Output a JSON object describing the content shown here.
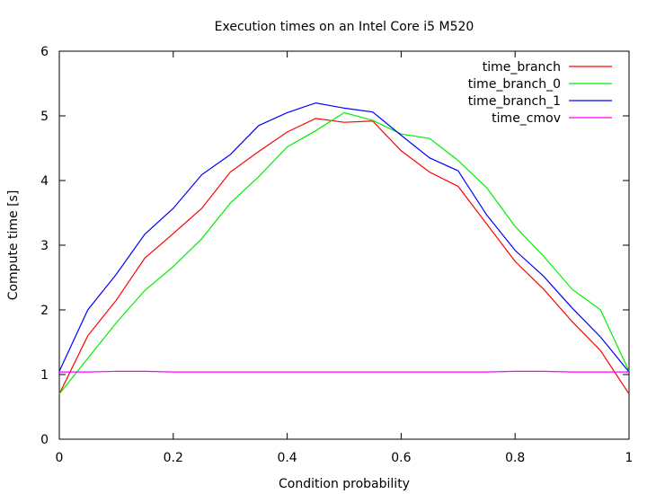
{
  "chart_data": {
    "type": "line",
    "title": "Execution times on an Intel Core i5 M520",
    "xlabel": "Condition probability",
    "ylabel": "Compute time [s]",
    "xlim": [
      0,
      1
    ],
    "ylim": [
      0,
      6
    ],
    "xticks": [
      "0",
      "0.2",
      "0.4",
      "0.6",
      "0.8",
      "1"
    ],
    "yticks": [
      "0",
      "1",
      "2",
      "3",
      "4",
      "5",
      "6"
    ],
    "legend": "top-right",
    "grid": false,
    "x": [
      0,
      0.05,
      0.1,
      0.15,
      0.2,
      0.25,
      0.3,
      0.35,
      0.4,
      0.45,
      0.5,
      0.55,
      0.6,
      0.65,
      0.7,
      0.75,
      0.8,
      0.85,
      0.9,
      0.95,
      1
    ],
    "series": [
      {
        "name": "time_branch",
        "color": "#ff0000",
        "values": [
          0.7,
          1.6,
          2.15,
          2.8,
          3.18,
          3.57,
          4.13,
          4.45,
          4.75,
          4.96,
          4.9,
          4.92,
          4.46,
          4.13,
          3.91,
          3.33,
          2.75,
          2.32,
          1.82,
          1.37,
          0.7
        ]
      },
      {
        "name": "time_branch_0",
        "color": "#00ee00",
        "values": [
          0.7,
          1.25,
          1.8,
          2.3,
          2.67,
          3.1,
          3.65,
          4.06,
          4.52,
          4.77,
          5.05,
          4.93,
          4.72,
          4.65,
          4.31,
          3.89,
          3.29,
          2.83,
          2.32,
          2.0,
          1.05
        ]
      },
      {
        "name": "time_branch_1",
        "color": "#0000ff",
        "values": [
          1.05,
          2.0,
          2.55,
          3.17,
          3.57,
          4.09,
          4.4,
          4.85,
          5.05,
          5.2,
          5.12,
          5.06,
          4.7,
          4.35,
          4.15,
          3.47,
          2.92,
          2.52,
          2.03,
          1.58,
          1.04
        ]
      },
      {
        "name": "time_cmov",
        "color": "#ff00ff",
        "values": [
          1.04,
          1.04,
          1.05,
          1.05,
          1.04,
          1.04,
          1.04,
          1.04,
          1.04,
          1.04,
          1.04,
          1.04,
          1.04,
          1.04,
          1.04,
          1.04,
          1.05,
          1.05,
          1.04,
          1.04,
          1.04
        ]
      }
    ]
  }
}
